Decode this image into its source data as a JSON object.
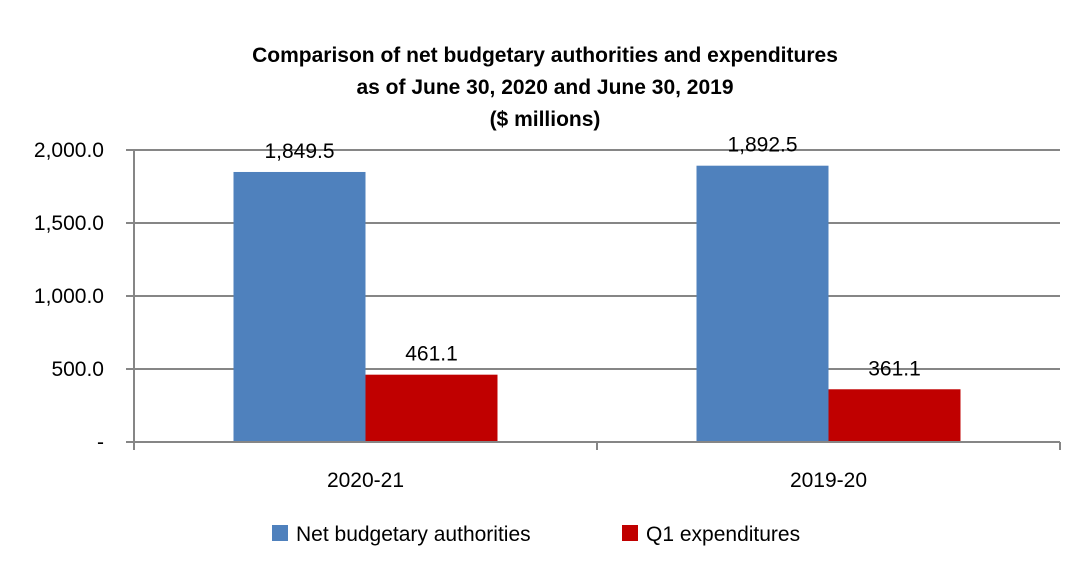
{
  "chart_data": {
    "type": "bar",
    "title_lines": [
      "Comparison of net budgetary authorities and expenditures",
      "as of June 30, 2020 and June 30, 2019",
      "($ millions)"
    ],
    "categories": [
      "2020-21",
      "2019-20"
    ],
    "series": [
      {
        "name": "Net budgetary authorities",
        "color": "#4f81bd",
        "values": [
          1849.5,
          1892.5
        ],
        "labels": [
          "1,849.5",
          "1,892.5"
        ]
      },
      {
        "name": "Q1 expenditures",
        "color": "#c00000",
        "values": [
          461.1,
          361.1
        ],
        "labels": [
          "461.1",
          "361.1"
        ]
      }
    ],
    "ylim": [
      0,
      2000
    ],
    "yticks": [
      {
        "value": 0,
        "label": "-"
      },
      {
        "value": 500,
        "label": "500.0"
      },
      {
        "value": 1000,
        "label": "1,000.0"
      },
      {
        "value": 1500,
        "label": "1,500.0"
      },
      {
        "value": 2000,
        "label": "2,000.0"
      }
    ],
    "grid": true,
    "legend_position": "bottom",
    "xlabel": "",
    "ylabel": ""
  }
}
